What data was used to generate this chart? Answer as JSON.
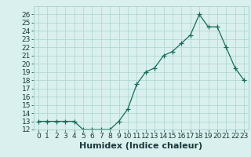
{
  "xlabel": "Humidex (Indice chaleur)",
  "x": [
    0,
    1,
    2,
    3,
    4,
    5,
    6,
    7,
    8,
    9,
    10,
    11,
    12,
    13,
    14,
    15,
    16,
    17,
    18,
    19,
    20,
    21,
    22,
    23
  ],
  "y": [
    13,
    13,
    13,
    13,
    13,
    12,
    12,
    12,
    12,
    13,
    14.5,
    17.5,
    19,
    19.5,
    21,
    21.5,
    22.5,
    23.5,
    26,
    24.5,
    24.5,
    22,
    19.5,
    18
  ],
  "line_color": "#1a6b5a",
  "marker": "+",
  "marker_size": 4,
  "bg_color": "#d9f0ee",
  "grid_color": "#aad4d0",
  "ylim": [
    12,
    27
  ],
  "xlim": [
    -0.5,
    23.5
  ],
  "yticks": [
    12,
    13,
    14,
    15,
    16,
    17,
    18,
    19,
    20,
    21,
    22,
    23,
    24,
    25,
    26
  ],
  "xticks": [
    0,
    1,
    2,
    3,
    4,
    5,
    6,
    7,
    8,
    9,
    10,
    11,
    12,
    13,
    14,
    15,
    16,
    17,
    18,
    19,
    20,
    21,
    22,
    23
  ],
  "tick_fontsize": 6.5,
  "label_fontsize": 8
}
